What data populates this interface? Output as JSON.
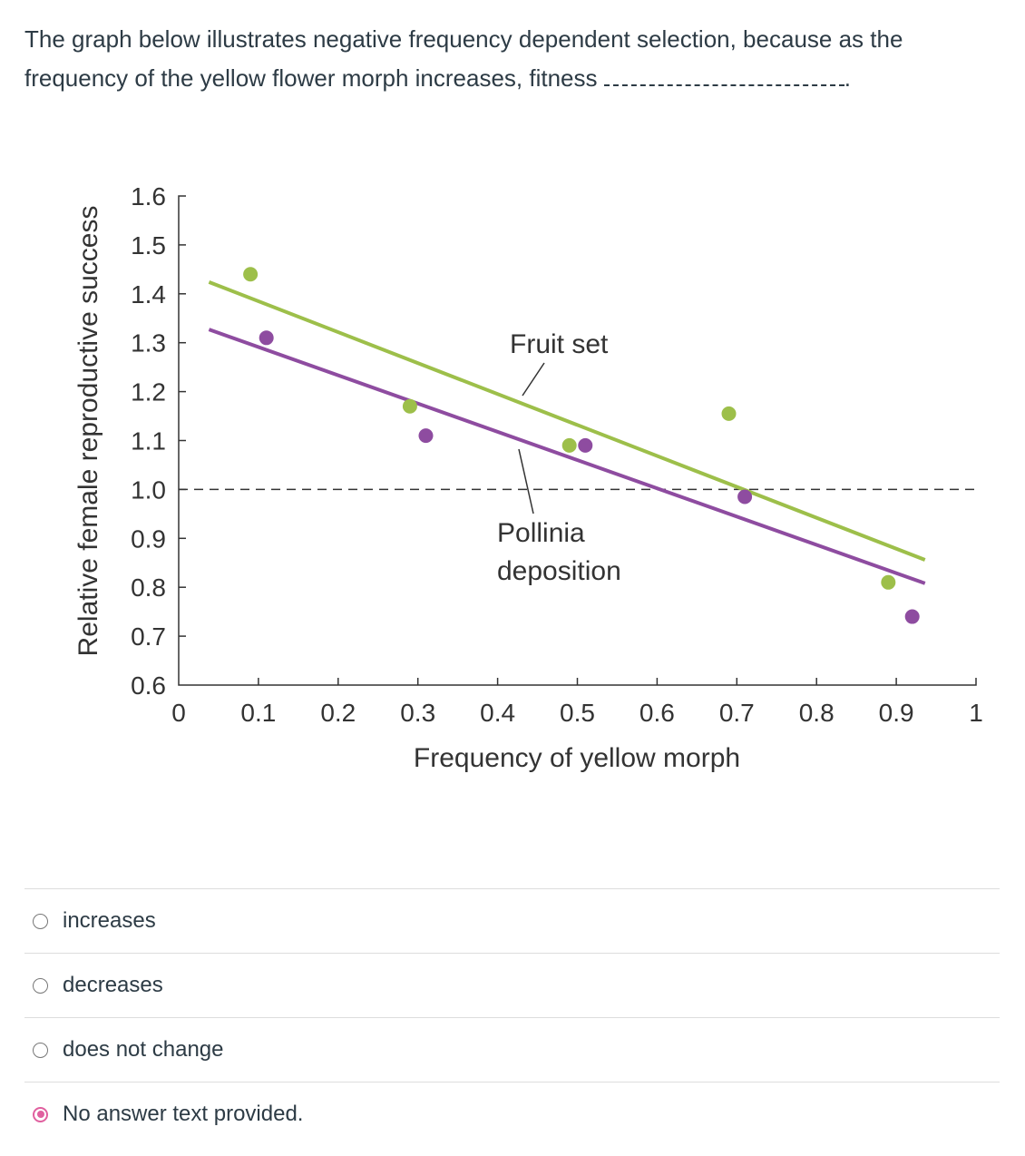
{
  "question": {
    "text": "The graph below illustrates negative frequency dependent selection, because as the frequency of the yellow flower morph increases, fitness"
  },
  "chart_data": {
    "type": "scatter",
    "xlabel": "Frequency of yellow morph",
    "ylabel": "Relative female reproductive success",
    "xlim": [
      0,
      1
    ],
    "ylim": [
      0.6,
      1.6
    ],
    "xticks": [
      "0",
      "0.1",
      "0.2",
      "0.3",
      "0.4",
      "0.5",
      "0.6",
      "0.7",
      "0.8",
      "0.9",
      "1"
    ],
    "yticks": [
      "0.6",
      "0.7",
      "0.8",
      "0.9",
      "1.0",
      "1.1",
      "1.2",
      "1.3",
      "1.4",
      "1.5",
      "1.6"
    ],
    "reference_line": {
      "y": 1.0,
      "style": "dashed"
    },
    "grid": false,
    "series": [
      {
        "name": "Fruit set",
        "color": "#9dbf4a",
        "points": [
          [
            0.09,
            1.44
          ],
          [
            0.29,
            1.17
          ],
          [
            0.49,
            1.09
          ],
          [
            0.69,
            1.155
          ],
          [
            0.89,
            0.81
          ]
        ],
        "fit": [
          [
            0.038,
            1.424
          ],
          [
            0.936,
            0.856
          ]
        ]
      },
      {
        "name": "Pollinia deposition",
        "color": "#8e4ca0",
        "points": [
          [
            0.11,
            1.31
          ],
          [
            0.31,
            1.11
          ],
          [
            0.51,
            1.09
          ],
          [
            0.71,
            0.985
          ],
          [
            0.92,
            0.74
          ]
        ],
        "fit": [
          [
            0.038,
            1.327
          ],
          [
            0.936,
            0.808
          ]
        ]
      }
    ],
    "annotations": {
      "fruit": "Fruit set",
      "pollinia_1": "Pollinia",
      "pollinia_2": "deposition"
    }
  },
  "answers": [
    {
      "label": "increases",
      "selected": false
    },
    {
      "label": "decreases",
      "selected": false
    },
    {
      "label": "does not change",
      "selected": false
    },
    {
      "label": "No answer text provided.",
      "selected": true
    }
  ],
  "colors": {
    "selected": "#e0609f"
  }
}
